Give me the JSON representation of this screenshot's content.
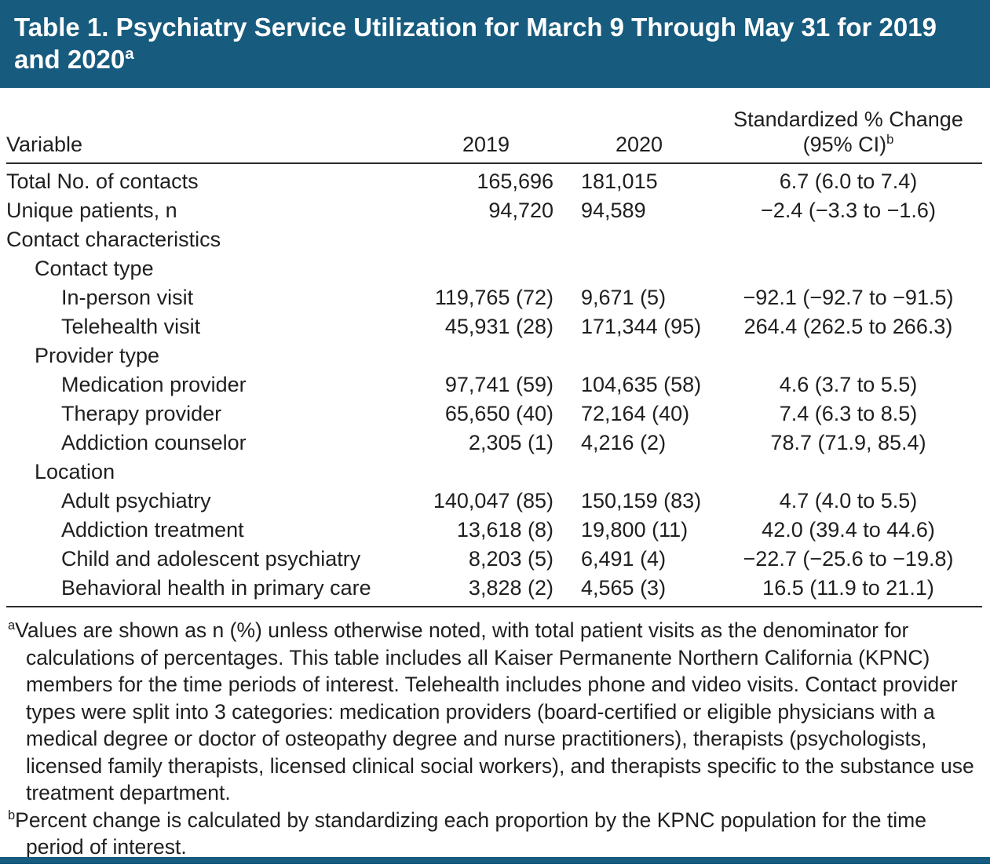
{
  "title": {
    "text": "Table 1. Psychiatry Service Utilization for March 9 Through May 31 for 2019 and 2020",
    "sup": "a"
  },
  "columns": {
    "variable": "Variable",
    "y2019": "2019",
    "y2020": "2020",
    "change_line1": "Standardized % Change",
    "change_line2": "(95% CI)",
    "change_sup": "b"
  },
  "rows": [
    {
      "label": "Total No. of contacts",
      "v2019": "165,696",
      "v2020": "181,015",
      "change": "6.7 (6.0 to 7.4)"
    },
    {
      "label": "Unique patients, n",
      "v2019": "94,720",
      "v2020": "94,589",
      "change": "−2.4 (−3.3 to −1.6)"
    },
    {
      "label": "Contact characteristics"
    },
    {
      "label": "Contact type"
    },
    {
      "label": "In-person visit",
      "v2019": "119,765 (72)",
      "v2020": "9,671 (5)",
      "change": "−92.1 (−92.7 to −91.5)"
    },
    {
      "label": "Telehealth visit",
      "v2019": "45,931 (28)",
      "v2020": "171,344 (95)",
      "change": "264.4 (262.5 to 266.3)"
    },
    {
      "label": "Provider type"
    },
    {
      "label": "Medication provider",
      "v2019": "97,741 (59)",
      "v2020": "104,635 (58)",
      "change": "4.6 (3.7 to 5.5)"
    },
    {
      "label": "Therapy provider",
      "v2019": "65,650 (40)",
      "v2020": "72,164 (40)",
      "change": "7.4 (6.3 to 8.5)"
    },
    {
      "label": "Addiction counselor",
      "v2019": "2,305 (1)",
      "v2020": "4,216 (2)",
      "change": "78.7 (71.9, 85.4)"
    },
    {
      "label": "Location"
    },
    {
      "label": "Adult psychiatry",
      "v2019": "140,047 (85)",
      "v2020": "150,159 (83)",
      "change": "4.7 (4.0 to 5.5)"
    },
    {
      "label": "Addiction treatment",
      "v2019": "13,618 (8)",
      "v2020": "19,800 (11)",
      "change": "42.0 (39.4 to 44.6)"
    },
    {
      "label": "Child and adolescent psychiatry",
      "v2019": "8,203 (5)",
      "v2020": "6,491 (4)",
      "change": "−22.7 (−25.6 to −19.8)"
    },
    {
      "label": "Behavioral health in primary care",
      "v2019": "3,828 (2)",
      "v2020": "4,565 (3)",
      "change": "16.5 (11.9 to 21.1)"
    }
  ],
  "footnotes": [
    {
      "marker": "a",
      "text": "Values are shown as n (%) unless otherwise noted, with total patient visits as the denominator for calculations of percentages. This table includes all Kaiser Permanente Northern California (KPNC) members for the time periods of interest. Telehealth includes phone and video visits. Contact provider types were split into 3 categories: medication providers (board-certified or eligible physicians with a medical degree or doctor of osteopathy degree and nurse practitioners), therapists (psychologists, licensed family therapists, licensed clinical social workers), and therapists specific to the substance use treatment department."
    },
    {
      "marker": "b",
      "text": "Percent change is calculated by standardizing each proportion by the KPNC population for the time period of interest."
    }
  ],
  "colors": {
    "banner": "#175B7E"
  }
}
